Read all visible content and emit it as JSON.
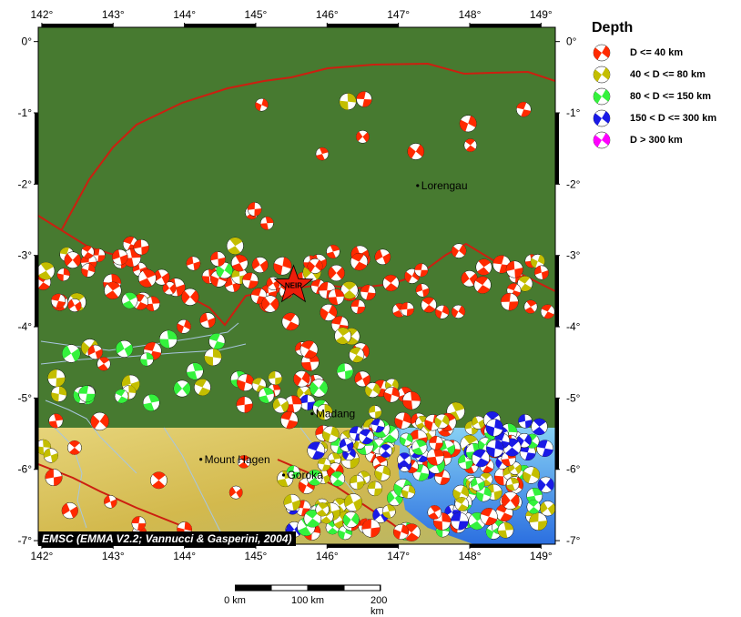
{
  "map": {
    "lon_ticks": [
      "142°",
      "143°",
      "144°",
      "145°",
      "146°",
      "147°",
      "148°",
      "149°"
    ],
    "lat_ticks": [
      "0°",
      "-1°",
      "-2°",
      "-3°",
      "-4°",
      "-5°",
      "-6°",
      "-7°"
    ],
    "extent": {
      "lon_min": 141.95,
      "lon_max": 149.2,
      "lat_min": -7.05,
      "lat_max": 0.2
    },
    "places": [
      {
        "name": "Lorengau",
        "lon": 147.27,
        "lat": -2.02
      },
      {
        "name": "Madang",
        "lon": 145.79,
        "lat": -5.22
      },
      {
        "name": "Mount Hagen",
        "lon": 144.23,
        "lat": -5.86
      },
      {
        "name": "Goroka",
        "lon": 145.39,
        "lat": -6.08
      }
    ],
    "epicenter": {
      "label": "NEIR",
      "lon": 145.53,
      "lat": -3.42
    },
    "colors": {
      "ocean": "#477a30",
      "plate_boundary": "#cc1f10",
      "river": "#a8c6e0",
      "land_high": "#d8c257",
      "sea_shallow": "#53a4e6"
    }
  },
  "legend": {
    "title": "Depth",
    "items": [
      {
        "label": "D <= 40 km",
        "color": "#ff2a00"
      },
      {
        "label": "40 < D <= 80 km",
        "color": "#c4be00"
      },
      {
        "label": "80 < D <= 150 km",
        "color": "#34f23c"
      },
      {
        "label": "150 < D <= 300 km",
        "color": "#1a1ae6"
      },
      {
        "label": "D > 300 km",
        "color": "#ff00ff"
      }
    ]
  },
  "credit": "EMSC (EMMA V2.2; Vannucci & Gasperini, 2004)",
  "scale": {
    "labels": [
      "0 km",
      "100 km",
      "200 km"
    ]
  }
}
